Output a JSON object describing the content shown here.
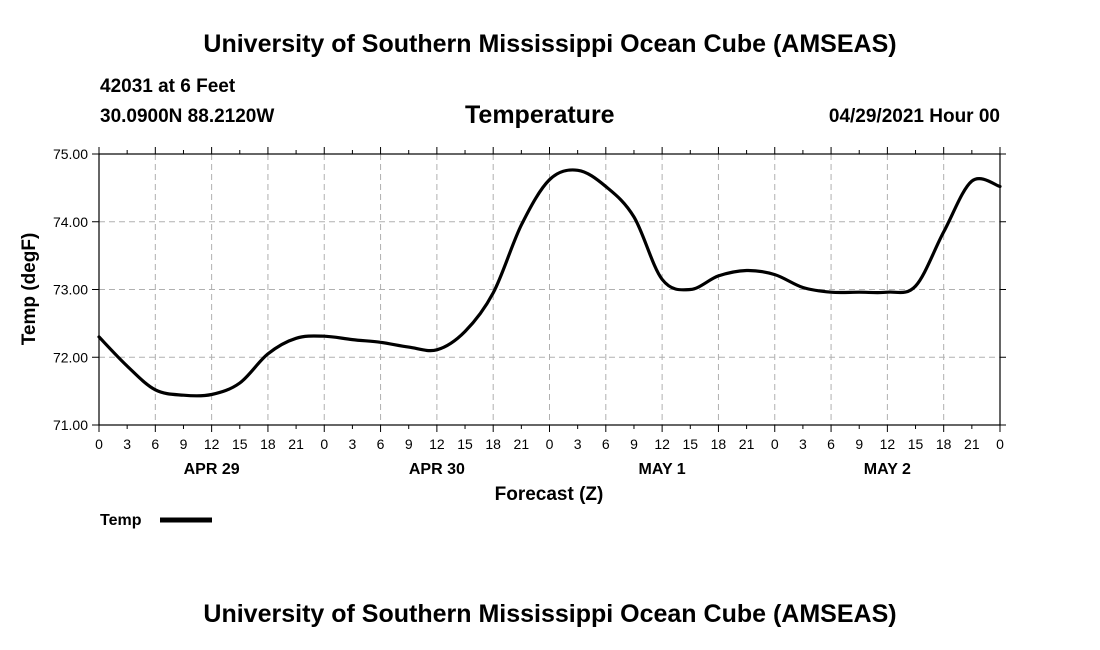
{
  "header": {
    "title_top": "University of Southern Mississippi Ocean Cube (AMSEAS)",
    "title_bottom": "University of Southern Mississippi Ocean Cube (AMSEAS)",
    "station": "42031 at 6 Feet",
    "coords": "30.0900N  88.2120W",
    "datetime": "04/29/2021 Hour 00"
  },
  "chart_data": {
    "type": "line",
    "title": "Temperature",
    "xlabel": "Forecast (Z)",
    "ylabel": "Temp (degF)",
    "ylim": [
      71.0,
      75.0
    ],
    "xlim": [
      0,
      96
    ],
    "yticks": [
      "71.00",
      "72.00",
      "73.00",
      "74.00",
      "75.00"
    ],
    "xticks": [
      "0",
      "3",
      "6",
      "9",
      "12",
      "15",
      "18",
      "21",
      "0",
      "3",
      "6",
      "9",
      "12",
      "15",
      "18",
      "21",
      "0",
      "3",
      "6",
      "9",
      "12",
      "15",
      "18",
      "21",
      "0",
      "3",
      "6",
      "9",
      "12",
      "15",
      "18",
      "21",
      "0"
    ],
    "date_labels": [
      "APR 29",
      "APR 30",
      "MAY 1",
      "MAY 2"
    ],
    "grid": true,
    "legend": "bottom-left",
    "series": [
      {
        "name": "Temp",
        "x": [
          0,
          3,
          6,
          9,
          12,
          15,
          18,
          21,
          24,
          27,
          30,
          33,
          36,
          39,
          42,
          45,
          48,
          51,
          54,
          57,
          60,
          63,
          66,
          69,
          72,
          75,
          78,
          81,
          84,
          87,
          90,
          93,
          96
        ],
        "values": [
          72.3,
          71.87,
          71.52,
          71.44,
          71.45,
          71.62,
          72.05,
          72.28,
          72.31,
          72.26,
          72.22,
          72.15,
          72.11,
          72.38,
          72.95,
          73.95,
          74.62,
          74.76,
          74.52,
          74.07,
          73.15,
          73.0,
          73.2,
          73.28,
          73.22,
          73.03,
          72.96,
          72.96,
          72.96,
          73.05,
          73.85,
          74.6,
          74.52
        ]
      }
    ]
  }
}
